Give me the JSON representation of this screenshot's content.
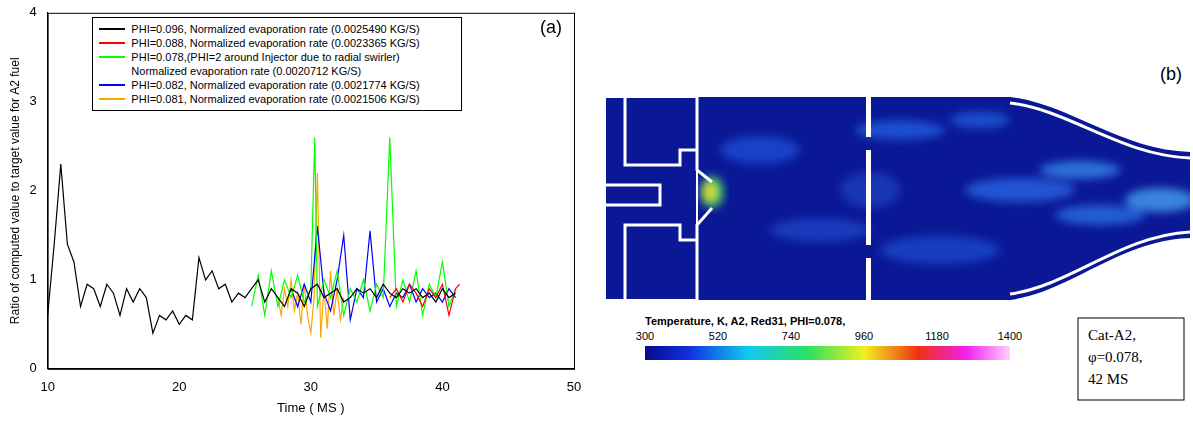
{
  "chart_data": {
    "type": "line",
    "panel_label": "(a)",
    "x_label": "Time ( MS )",
    "y_label": "Ratio of computed value to target value for A2 fuel",
    "xlim": [
      10,
      50
    ],
    "xticks": [
      10,
      20,
      30,
      40,
      50
    ],
    "ylim": [
      0,
      4
    ],
    "yticks": [
      0,
      1,
      2,
      3,
      4
    ],
    "grid": false,
    "legend": "top",
    "series": [
      {
        "name": "PHI=0.096, Normalized evaporation rate (0.0025490 KG/S)",
        "color": "#000000",
        "x": [
          10,
          10.5,
          11,
          11.5,
          12,
          12.5,
          13,
          13.5,
          14,
          14.5,
          15,
          15.5,
          16,
          16.5,
          17,
          17.5,
          18,
          18.5,
          19,
          19.5,
          20,
          20.5,
          21,
          21.5,
          22,
          22.5,
          23,
          23.5,
          24,
          24.5,
          25,
          25.5,
          26,
          26.5,
          27,
          27.5,
          28,
          28.5,
          29,
          29.5,
          30,
          30.5,
          31,
          31.5,
          32,
          32.5,
          33,
          33.5,
          34,
          34.5,
          35,
          35.5,
          36,
          36.5,
          37,
          37.5,
          38,
          38.5,
          39,
          39.5,
          40,
          40.5,
          41
        ],
        "values": [
          0.6,
          1.4,
          2.3,
          1.4,
          1.2,
          0.7,
          0.95,
          0.9,
          0.7,
          0.95,
          0.85,
          0.6,
          0.9,
          0.75,
          0.9,
          0.8,
          0.4,
          0.6,
          0.55,
          0.65,
          0.5,
          0.6,
          0.55,
          1.25,
          1.0,
          1.1,
          0.9,
          0.95,
          0.75,
          0.85,
          0.8,
          0.9,
          1.0,
          0.75,
          0.9,
          0.8,
          0.7,
          0.9,
          0.85,
          0.7,
          0.9,
          0.95,
          0.8,
          0.85,
          0.9,
          0.75,
          0.8,
          0.9,
          0.85,
          0.9,
          0.8,
          0.95,
          0.85,
          0.8,
          0.9,
          0.85,
          0.9,
          0.8,
          0.85,
          0.75,
          0.9,
          0.8,
          0.85
        ]
      },
      {
        "name": "PHI=0.088, Normalized evaporation rate (0.0023365 KG/S)",
        "color": "#ff0000",
        "x": [
          36,
          36.5,
          37,
          37.5,
          38,
          38.5,
          39,
          39.5,
          40,
          40.5,
          41,
          41.3
        ],
        "values": [
          0.8,
          0.9,
          0.75,
          0.95,
          0.85,
          0.7,
          0.9,
          0.8,
          0.95,
          0.6,
          0.9,
          0.95
        ]
      },
      {
        "name": "PHI=0.078,(PHI=2 around Injector due to radial swirler) Normalized evaporation rate (0.0020712 KG/S)",
        "color": "#00ff00",
        "x": [
          25.5,
          26,
          26.5,
          27,
          27.5,
          28,
          28.5,
          29,
          29.5,
          30,
          30.3,
          30.5,
          31,
          31.5,
          32,
          32.5,
          33,
          33.5,
          34,
          34.5,
          35,
          35.5,
          36,
          36.5,
          37,
          37.5,
          38,
          38.5,
          39,
          39.5,
          40,
          40.5,
          41
        ],
        "values": [
          0.7,
          1.05,
          0.6,
          1.1,
          0.7,
          1.0,
          0.8,
          1.05,
          0.75,
          0.9,
          2.6,
          0.7,
          1.0,
          0.8,
          1.1,
          0.6,
          0.9,
          0.75,
          1.0,
          0.65,
          0.95,
          0.8,
          2.6,
          0.7,
          1.0,
          0.75,
          1.1,
          0.6,
          0.95,
          0.8,
          1.2,
          0.7,
          0.9
        ]
      },
      {
        "name": "PHI=0.082, Normalized evaporation rate (0.0021774 KG/S)",
        "color": "#0000ff",
        "x": [
          28.5,
          29,
          29.5,
          30,
          30.5,
          31,
          31.5,
          32,
          32.5,
          33,
          33.5,
          34,
          34.5,
          35,
          35.5,
          36,
          36.5,
          37,
          37.5,
          38,
          38.5,
          39,
          39.5,
          40,
          40.5,
          41
        ],
        "values": [
          0.9,
          0.7,
          0.95,
          0.75,
          1.6,
          0.85,
          0.65,
          1.0,
          1.5,
          0.55,
          0.9,
          0.8,
          1.55,
          0.75,
          0.9,
          0.7,
          0.85,
          0.8,
          0.95,
          0.75,
          0.9,
          0.8,
          0.85,
          0.75,
          0.9,
          0.8
        ]
      },
      {
        "name": "PHI=0.081, Normalized evaporation rate (0.0021506 KG/S)",
        "color": "#ffa500",
        "x": [
          27.5,
          27.75,
          28,
          28.25,
          28.5,
          28.75,
          29,
          29.25,
          29.5,
          29.75,
          30,
          30.25,
          30.5,
          30.75,
          31,
          31.25,
          31.5,
          31.75,
          32,
          32.25,
          32.5
        ],
        "values": [
          0.8,
          0.6,
          0.9,
          0.7,
          1.0,
          0.65,
          0.85,
          0.5,
          0.95,
          0.6,
          0.4,
          0.8,
          2.2,
          0.35,
          0.9,
          0.45,
          1.1,
          0.6,
          0.9,
          0.55,
          0.8
        ]
      }
    ]
  },
  "panel_b": {
    "panel_label": "(b)",
    "colorbar": {
      "title": "Temperature, K, A2, Red31, PHI=0.078,",
      "range": [
        300,
        1400
      ],
      "ticks": [
        300,
        520,
        740,
        960,
        1180,
        1400
      ]
    },
    "annotation": [
      "Cat-A2,",
      "φ=0.078,",
      "42 MS"
    ]
  }
}
